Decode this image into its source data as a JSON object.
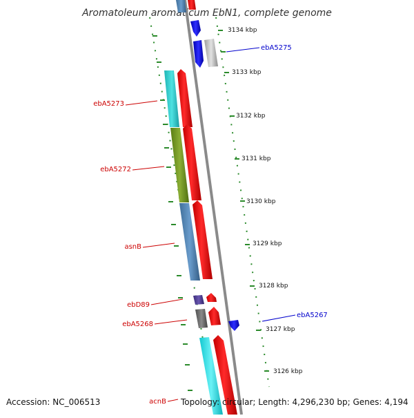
{
  "title": "Aromatoleum aromaticum EbN1, complete genome",
  "accession": "Accession: NC_006513",
  "topology": "Topology: circular; Length: 4,296,230 bp; Genes: 4,194",
  "colors": {
    "backbone": "#8a8a8a",
    "forward_gene": "#ff0000",
    "reverse_gene": "#0000ff",
    "dotted_track": "#2a8a2a",
    "label_forward": "#cc0000",
    "label_reverse": "#0000cc"
  },
  "kbp_ticks": [
    "3134 kbp",
    "3133 kbp",
    "3132 kbp",
    "3131 kbp",
    "3130 kbp",
    "3129 kbp",
    "3128 kbp",
    "3127 kbp",
    "3126 kbp"
  ],
  "left_labels": [
    "ebA5273",
    "ebA5272",
    "asnB",
    "ebD89",
    "ebA5268",
    "acnB"
  ],
  "right_labels": [
    "ebA5275",
    "ebA5267"
  ]
}
